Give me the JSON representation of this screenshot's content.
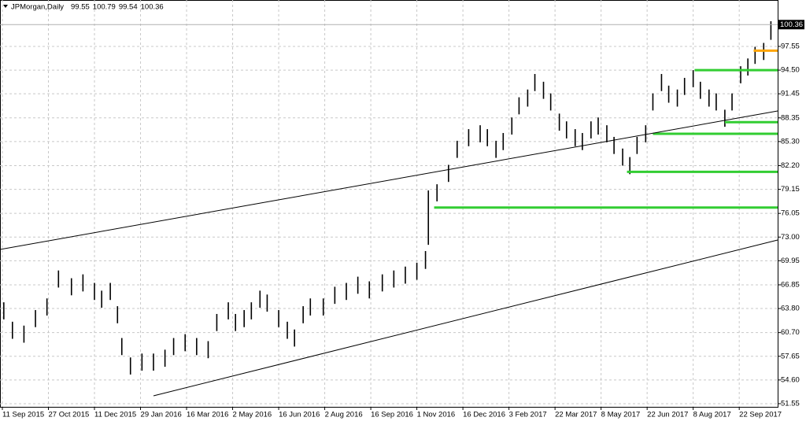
{
  "chart_data": {
    "type": "ohlc",
    "symbol": "JPMorgan,Daily",
    "ohlc": [
      99.55,
      100.79,
      99.54,
      100.36
    ],
    "xlim": [
      -1.64,
      538.7
    ],
    "ylim": [
      51.14,
      103.02
    ],
    "grid": true,
    "bar_color": "#000000",
    "xticks": [
      {
        "value": 0,
        "label": "11 Sep 2015"
      },
      {
        "value": 32,
        "label": "27 Oct 2015"
      },
      {
        "value": 64,
        "label": "11 Dec 2015"
      },
      {
        "value": 96,
        "label": "29 Jan 2016"
      },
      {
        "value": 128,
        "label": "16 Mar 2016"
      },
      {
        "value": 160,
        "label": "2 May 2016"
      },
      {
        "value": 192,
        "label": "16 Jun 2016"
      },
      {
        "value": 224,
        "label": "2 Aug 2016"
      },
      {
        "value": 256,
        "label": "16 Sep 2016"
      },
      {
        "value": 288,
        "label": "1 Nov 2016"
      },
      {
        "value": 320,
        "label": "16 Dec 2016"
      },
      {
        "value": 352,
        "label": "3 Feb 2017"
      },
      {
        "value": 384,
        "label": "22 Mar 2017"
      },
      {
        "value": 416,
        "label": "8 May 2017"
      },
      {
        "value": 448,
        "label": "22 Jun 2017"
      },
      {
        "value": 480,
        "label": "8 Aug 2017"
      },
      {
        "value": 512,
        "label": "22 Sep 2017"
      }
    ],
    "yticks": [
      97.55,
      {
        "value": 94.5,
        "label": "94.50"
      },
      91.45,
      88.35,
      {
        "value": 85.3,
        "label": "85.30"
      },
      {
        "value": 82.2,
        "label": "82.20"
      },
      79.15,
      76.05,
      {
        "value": 73,
        "label": "73.00"
      },
      69.95,
      66.85,
      {
        "value": 63.8,
        "label": "63.80"
      },
      {
        "value": 60.7,
        "label": "60.70"
      },
      57.65,
      {
        "value": 54.6,
        "label": "54.60"
      },
      51.55
    ],
    "x": [
      1,
      7,
      15,
      23,
      31,
      39,
      48,
      56,
      64,
      69,
      75,
      80,
      83,
      89,
      97,
      105,
      113,
      119,
      127,
      135,
      143,
      149,
      157,
      162,
      168,
      173,
      179,
      184,
      192,
      198,
      203,
      209,
      214,
      223,
      231,
      239,
      247,
      255,
      264,
      272,
      280,
      288,
      294,
      296,
      302,
      310,
      316,
      324,
      332,
      337,
      343,
      348,
      354,
      359,
      365,
      370,
      376,
      381,
      387,
      392,
      398,
      403,
      409,
      414,
      420,
      425,
      431,
      436,
      441,
      447,
      452,
      458,
      463,
      469,
      474,
      480,
      485,
      491,
      496,
      502,
      507,
      513,
      518,
      523,
      529,
      534
    ],
    "high": [
      64.6,
      62.1,
      61.6,
      63.6,
      65.1,
      68.7,
      67.7,
      68.2,
      67.1,
      66.1,
      67.1,
      64.1,
      60.0,
      57.5,
      58.0,
      58.0,
      58.5,
      60.0,
      60.5,
      60.0,
      59.6,
      63.1,
      64.6,
      63.1,
      63.6,
      64.6,
      66.1,
      65.6,
      63.6,
      62.1,
      61.1,
      64.1,
      65.1,
      65.1,
      66.6,
      67.1,
      67.9,
      67.3,
      68.2,
      68.7,
      69.2,
      69.7,
      71.2,
      79.0,
      79.8,
      82.3,
      85.4,
      86.9,
      87.4,
      86.9,
      85.4,
      86.4,
      88.4,
      91.0,
      92.0,
      94.0,
      93.0,
      91.5,
      88.9,
      87.9,
      86.9,
      86.4,
      87.9,
      88.4,
      87.4,
      85.9,
      84.4,
      83.3,
      85.9,
      87.4,
      91.5,
      94.0,
      92.5,
      92.0,
      93.5,
      94.5,
      93.0,
      92.0,
      91.5,
      89.4,
      91.5,
      95.0,
      96.0,
      97.5,
      98.0,
      100.79
    ],
    "low": [
      62.4,
      59.9,
      59.4,
      61.4,
      62.9,
      66.5,
      65.5,
      66.0,
      64.9,
      63.9,
      64.9,
      61.9,
      57.8,
      55.3,
      55.8,
      55.8,
      56.3,
      57.8,
      58.3,
      57.8,
      57.4,
      60.9,
      62.4,
      60.9,
      61.4,
      62.4,
      63.9,
      63.4,
      61.4,
      59.9,
      58.9,
      61.9,
      62.9,
      62.9,
      64.4,
      64.9,
      65.7,
      65.1,
      66.0,
      66.5,
      67.0,
      67.5,
      68.9,
      72.0,
      77.6,
      80.1,
      83.2,
      84.7,
      85.2,
      84.7,
      83.2,
      84.2,
      86.2,
      88.8,
      89.8,
      91.8,
      90.8,
      89.3,
      86.7,
      85.7,
      84.7,
      84.2,
      85.7,
      86.2,
      85.2,
      83.7,
      82.2,
      81.1,
      83.7,
      85.2,
      89.3,
      91.8,
      90.3,
      89.8,
      91.3,
      92.3,
      90.8,
      89.8,
      89.3,
      87.2,
      89.3,
      92.8,
      93.8,
      95.3,
      95.8,
      98.4
    ],
    "levels": [
      {
        "value": 94.5,
        "x": 481,
        "color": "#32cd32"
      },
      {
        "value": 87.8,
        "x": 502,
        "color": "#32cd32"
      },
      {
        "value": 86.3,
        "x": 452,
        "color": "#32cd32"
      },
      {
        "value": 81.4,
        "x": 434,
        "color": "#32cd32"
      },
      {
        "value": 76.8,
        "x": 300,
        "color": "#32cd32"
      },
      {
        "value": 97.0,
        "x": 522,
        "color": "#ffa500"
      }
    ]
  }
}
